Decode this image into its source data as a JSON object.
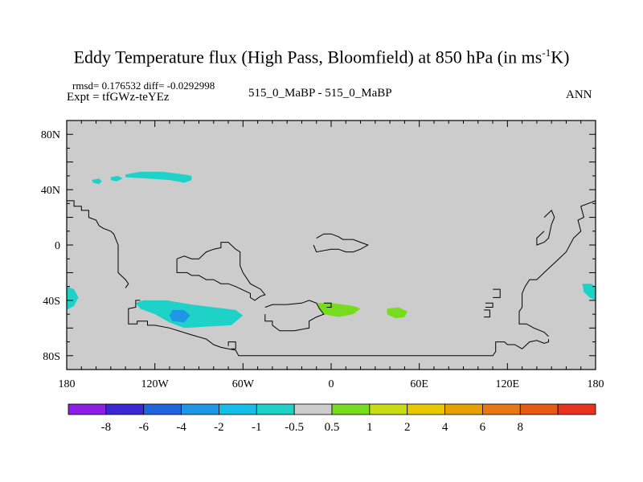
{
  "chart_data": {
    "type": "heatmap",
    "title": "Eddy Temperature flux (High Pass, Bloomfield) at 850 hPa (in ms",
    "title_sup": "-1",
    "title_end": "K)",
    "stats_text": "rmsd= 0.176532 diff= -0.0292998",
    "expt_text": "Expt = tfGWz-teYEz",
    "diff_text": "515_0_MaBP - 515_0_MaBP",
    "period_text": "ANN",
    "xlim": [
      -180,
      180
    ],
    "ylim": [
      -90,
      90
    ],
    "x_ticks": [
      {
        "value": -180,
        "label": "180"
      },
      {
        "value": -120,
        "label": "120W"
      },
      {
        "value": -60,
        "label": "60W"
      },
      {
        "value": 0,
        "label": "0"
      },
      {
        "value": 60,
        "label": "60E"
      },
      {
        "value": 120,
        "label": "120E"
      },
      {
        "value": 180,
        "label": "180"
      }
    ],
    "y_ticks": [
      {
        "value": 80,
        "label": "80N"
      },
      {
        "value": 40,
        "label": "40N"
      },
      {
        "value": 0,
        "label": "0"
      },
      {
        "value": -40,
        "label": "40S"
      },
      {
        "value": -80,
        "label": "80S"
      }
    ],
    "background_color": "#cccccc",
    "colorbar": {
      "colors": [
        "#8c1ee6",
        "#3c28d2",
        "#1e64dc",
        "#1e96e6",
        "#14bee6",
        "#1ed2c8",
        "#cccccc",
        "#78dc1e",
        "#c8dc14",
        "#e6c800",
        "#e6a000",
        "#e67814",
        "#e65a14",
        "#e6321e"
      ],
      "labels": [
        "-8",
        "-6",
        "-4",
        "-2",
        "-1",
        "-0.5",
        "0.5",
        "1",
        "2",
        "4",
        "6",
        "8"
      ]
    },
    "anomaly_regions": [
      {
        "color": "#1ed2c8",
        "lonlat": [
          [
            -140,
            51
          ],
          [
            -130,
            53
          ],
          [
            -115,
            53
          ],
          [
            -100,
            51
          ],
          [
            -95,
            50
          ],
          [
            -95,
            47
          ],
          [
            -100,
            45
          ],
          [
            -110,
            47
          ],
          [
            -125,
            48
          ],
          [
            -140,
            49
          ]
        ]
      },
      {
        "color": "#1ed2c8",
        "lonlat": [
          [
            -163,
            47
          ],
          [
            -158,
            48
          ],
          [
            -156,
            46
          ],
          [
            -158,
            44
          ],
          [
            -162,
            45
          ]
        ]
      },
      {
        "color": "#1ed2c8",
        "lonlat": [
          [
            -150,
            49
          ],
          [
            -145,
            50
          ],
          [
            -142,
            48
          ],
          [
            -146,
            46
          ],
          [
            -150,
            47
          ]
        ]
      },
      {
        "color": "#1ed2c8",
        "lonlat": [
          [
            -128,
            -40
          ],
          [
            -112,
            -40
          ],
          [
            -95,
            -43
          ],
          [
            -80,
            -45
          ],
          [
            -65,
            -47
          ],
          [
            -60,
            -51
          ],
          [
            -68,
            -58
          ],
          [
            -85,
            -59
          ],
          [
            -100,
            -60
          ],
          [
            -110,
            -56
          ],
          [
            -120,
            -50
          ],
          [
            -130,
            -46
          ],
          [
            -133,
            -42
          ]
        ]
      },
      {
        "color": "#1e96e6",
        "lonlat": [
          [
            -108,
            -47
          ],
          [
            -100,
            -47
          ],
          [
            -96,
            -51
          ],
          [
            -100,
            -56
          ],
          [
            -108,
            -55
          ],
          [
            -110,
            -51
          ]
        ]
      },
      {
        "color": "#1ed2c8",
        "lonlat": [
          [
            -180,
            -30
          ],
          [
            -175,
            -32
          ],
          [
            -172,
            -38
          ],
          [
            -175,
            -44
          ],
          [
            -180,
            -47
          ]
        ]
      },
      {
        "color": "#1ed2c8",
        "lonlat": [
          [
            171,
            -28
          ],
          [
            177,
            -28
          ],
          [
            180,
            -30
          ],
          [
            180,
            -40
          ],
          [
            176,
            -38
          ],
          [
            172,
            -34
          ]
        ]
      },
      {
        "color": "#78dc1e",
        "lonlat": [
          [
            -10,
            -42
          ],
          [
            0,
            -42
          ],
          [
            15,
            -44
          ],
          [
            20,
            -46
          ],
          [
            15,
            -50
          ],
          [
            5,
            -52
          ],
          [
            -5,
            -50
          ],
          [
            -8,
            -46
          ]
        ]
      },
      {
        "color": "#78dc1e",
        "lonlat": [
          [
            38,
            -46
          ],
          [
            46,
            -45
          ],
          [
            52,
            -48
          ],
          [
            50,
            -52
          ],
          [
            44,
            -53
          ],
          [
            38,
            -50
          ]
        ]
      }
    ],
    "coastlines": [
      [
        [
          -180,
          32
        ],
        [
          -175,
          32
        ],
        [
          -175,
          28
        ],
        [
          -170,
          28
        ],
        [
          -170,
          25
        ],
        [
          -165,
          25
        ],
        [
          -165,
          20
        ],
        [
          -160,
          18
        ],
        [
          -158,
          14
        ],
        [
          -155,
          12
        ],
        [
          -150,
          10
        ],
        [
          -148,
          8
        ],
        [
          -145,
          0
        ],
        [
          -145,
          -5
        ],
        [
          -145,
          -20
        ],
        [
          -140,
          -25
        ],
        [
          -138,
          -28
        ],
        [
          -140,
          -31
        ]
      ],
      [
        [
          -130,
          -40
        ],
        [
          -133,
          -40
        ],
        [
          -133,
          -45
        ],
        [
          -138,
          -46
        ],
        [
          -138,
          -57
        ],
        [
          -132,
          -57
        ],
        [
          -132,
          -55
        ],
        [
          -125,
          -55
        ],
        [
          -125,
          -58
        ],
        [
          -120,
          -58
        ],
        [
          -110,
          -60
        ],
        [
          -95,
          -65
        ],
        [
          -85,
          -68
        ],
        [
          -80,
          -72
        ],
        [
          -75,
          -74
        ],
        [
          -70,
          -75
        ],
        [
          -65,
          -76
        ],
        [
          -63,
          -80
        ],
        [
          -58,
          -80
        ],
        [
          -30,
          -80
        ],
        [
          10,
          -80
        ],
        [
          60,
          -80
        ],
        [
          110,
          -80
        ],
        [
          112,
          -77
        ],
        [
          112,
          -70
        ],
        [
          118,
          -70
        ],
        [
          120,
          -72
        ],
        [
          125,
          -72
        ],
        [
          130,
          -75
        ],
        [
          135,
          -70
        ],
        [
          140,
          -69
        ],
        [
          145,
          -71
        ],
        [
          148,
          -70
        ],
        [
          148,
          -68
        ]
      ],
      [
        [
          -70,
          -73
        ],
        [
          -70,
          -70
        ],
        [
          -65,
          -70
        ],
        [
          -65,
          -75
        ],
        [
          -68,
          -75
        ]
      ],
      [
        [
          -105,
          -10
        ],
        [
          -105,
          -20
        ],
        [
          -98,
          -20
        ],
        [
          -95,
          -22
        ],
        [
          -90,
          -22
        ],
        [
          -85,
          -25
        ],
        [
          -80,
          -25
        ],
        [
          -75,
          -28
        ],
        [
          -70,
          -28
        ],
        [
          -65,
          -30
        ],
        [
          -55,
          -35
        ],
        [
          -55,
          -38
        ],
        [
          -52,
          -40
        ],
        [
          -48,
          -37
        ],
        [
          -45,
          -36
        ],
        [
          -48,
          -32
        ],
        [
          -55,
          -28
        ],
        [
          -60,
          -20
        ],
        [
          -62,
          -15
        ],
        [
          -62,
          -5
        ],
        [
          -65,
          -3
        ],
        [
          -68,
          0
        ],
        [
          -70,
          2
        ],
        [
          -75,
          2
        ],
        [
          -75,
          -2
        ],
        [
          -80,
          -3
        ],
        [
          -85,
          -5
        ],
        [
          -90,
          -10
        ],
        [
          -95,
          -10
        ],
        [
          -100,
          -8
        ],
        [
          -105,
          -10
        ]
      ],
      [
        [
          -45,
          -45
        ],
        [
          -40,
          -43
        ],
        [
          -30,
          -43
        ],
        [
          -20,
          -42
        ],
        [
          -15,
          -40
        ],
        [
          -10,
          -42
        ],
        [
          -8,
          -46
        ],
        [
          -5,
          -50
        ],
        [
          -10,
          -52
        ],
        [
          -15,
          -55
        ],
        [
          -15,
          -60
        ],
        [
          -25,
          -62
        ],
        [
          -35,
          -62
        ],
        [
          -40,
          -58
        ],
        [
          -40,
          -55
        ],
        [
          -45,
          -55
        ],
        [
          -45,
          -50
        ]
      ],
      [
        [
          -10,
          5
        ],
        [
          -5,
          8
        ],
        [
          0,
          8
        ],
        [
          5,
          6
        ],
        [
          8,
          4
        ],
        [
          15,
          4
        ],
        [
          20,
          2
        ],
        [
          25,
          0
        ],
        [
          20,
          -3
        ],
        [
          15,
          -5
        ],
        [
          10,
          -5
        ],
        [
          5,
          -3
        ],
        [
          0,
          -3
        ],
        [
          -10,
          -5
        ],
        [
          -12,
          0
        ]
      ],
      [
        [
          -5,
          -42
        ],
        [
          0,
          -42
        ],
        [
          0,
          -45
        ],
        [
          -3,
          -45
        ]
      ],
      [
        [
          145,
          20
        ],
        [
          150,
          25
        ],
        [
          152,
          20
        ],
        [
          150,
          15
        ],
        [
          148,
          5
        ],
        [
          145,
          2
        ],
        [
          140,
          0
        ],
        [
          140,
          5
        ],
        [
          145,
          10
        ]
      ],
      [
        [
          180,
          32
        ],
        [
          175,
          30
        ],
        [
          170,
          28
        ],
        [
          172,
          20
        ],
        [
          168,
          18
        ],
        [
          170,
          10
        ],
        [
          165,
          5
        ],
        [
          160,
          -5
        ],
        [
          155,
          -10
        ],
        [
          150,
          -15
        ],
        [
          145,
          -20
        ],
        [
          140,
          -25
        ],
        [
          135,
          -25
        ],
        [
          132,
          -30
        ],
        [
          130,
          -35
        ],
        [
          130,
          -45
        ],
        [
          128,
          -48
        ],
        [
          128,
          -57
        ],
        [
          133,
          -57
        ],
        [
          138,
          -60
        ],
        [
          145,
          -63
        ],
        [
          148,
          -66
        ]
      ],
      [
        [
          110,
          -32
        ],
        [
          115,
          -32
        ],
        [
          115,
          -38
        ],
        [
          110,
          -38
        ]
      ],
      [
        [
          105,
          -42
        ],
        [
          110,
          -42
        ],
        [
          110,
          -45
        ],
        [
          105,
          -45
        ]
      ],
      [
        [
          104,
          -47
        ],
        [
          108,
          -47
        ],
        [
          108,
          -52
        ],
        [
          104,
          -52
        ]
      ]
    ]
  }
}
